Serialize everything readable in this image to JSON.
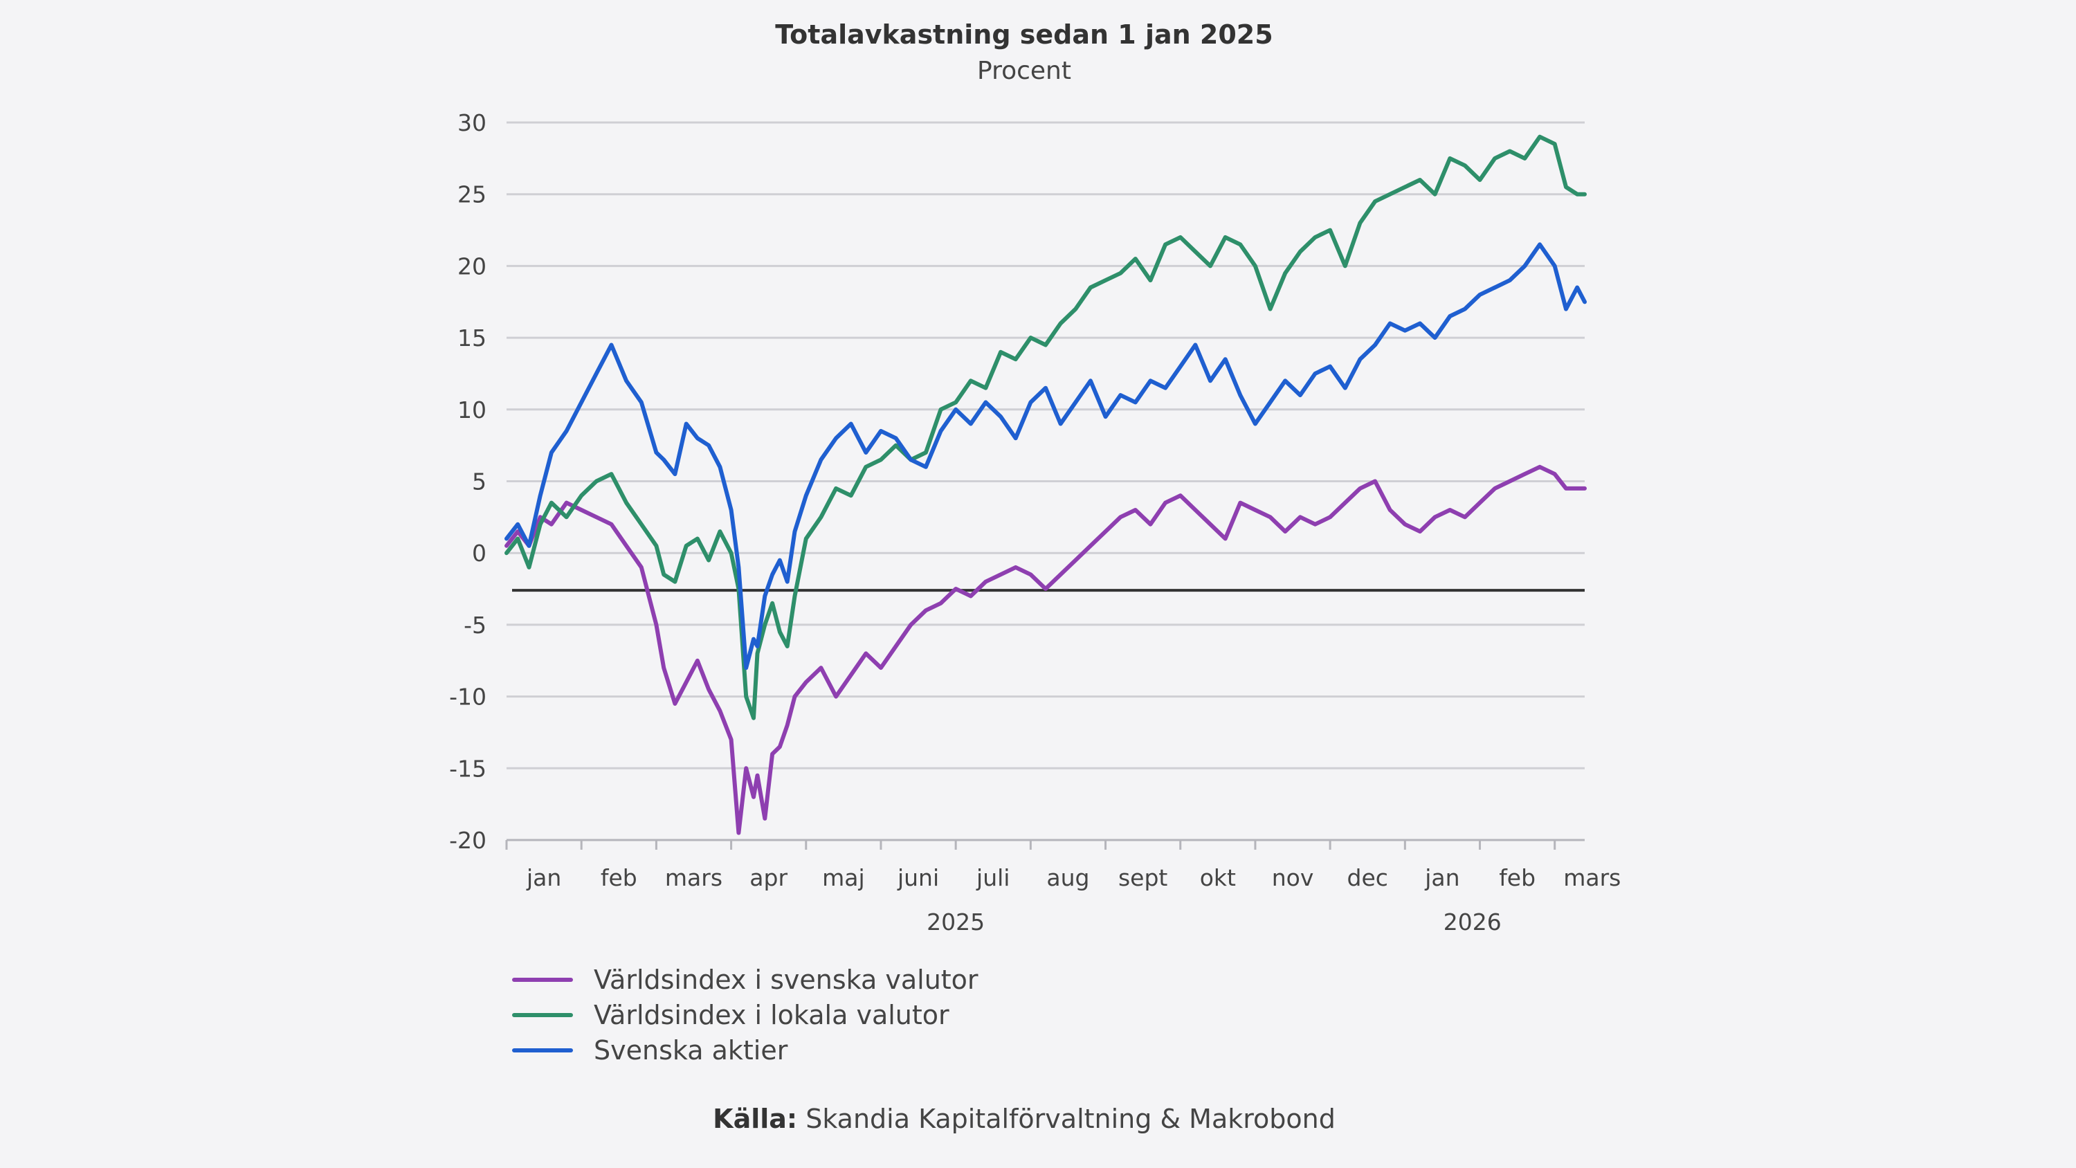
{
  "title": "Totalavkastning sedan 1 jan 2025",
  "subtitle": "Procent",
  "source": {
    "label": "Källa:",
    "text": "Skandia Kapitalförvaltning & Makrobond"
  },
  "colors": {
    "purple": "#8e3fb0",
    "green": "#2e8f6a",
    "blue": "#1f5fd0",
    "grid": "#cfcfd4",
    "refline": "#333333"
  },
  "chart_data": {
    "type": "line",
    "title": "Totalavkastning sedan 1 jan 2025",
    "subtitle": "Procent",
    "ylim": [
      -20,
      30
    ],
    "yticks": [
      "30",
      "25",
      "20",
      "15",
      "10",
      "5",
      "0",
      "-5",
      "-10",
      "-15",
      "-20"
    ],
    "xticks": [
      "jan",
      "feb",
      "mars",
      "apr",
      "maj",
      "juni",
      "juli",
      "aug",
      "sept",
      "okt",
      "nov",
      "dec",
      "jan",
      "feb",
      "mars"
    ],
    "years": [
      "2025",
      "2026"
    ],
    "reference_line": -2.6,
    "grid": true,
    "legend_position": "bottom-left",
    "x_unit": "months since 1 jan 2025",
    "series": [
      {
        "name": "Världsindex i svenska valutor",
        "color": "#8e3fb0",
        "x": [
          0,
          0.15,
          0.3,
          0.45,
          0.6,
          0.8,
          1.0,
          1.2,
          1.4,
          1.6,
          1.8,
          2.0,
          2.1,
          2.25,
          2.4,
          2.55,
          2.7,
          2.85,
          3.0,
          3.1,
          3.2,
          3.3,
          3.35,
          3.45,
          3.55,
          3.65,
          3.75,
          3.85,
          4.0,
          4.2,
          4.4,
          4.6,
          4.8,
          5.0,
          5.2,
          5.4,
          5.6,
          5.8,
          6.0,
          6.2,
          6.4,
          6.6,
          6.8,
          7.0,
          7.2,
          7.4,
          7.6,
          7.8,
          8.0,
          8.2,
          8.4,
          8.6,
          8.8,
          9.0,
          9.2,
          9.4,
          9.6,
          9.8,
          10.0,
          10.2,
          10.4,
          10.6,
          10.8,
          11.0,
          11.2,
          11.4,
          11.6,
          11.8,
          12.0,
          12.2,
          12.4,
          12.6,
          12.8,
          13.0,
          13.2,
          13.4,
          13.6,
          13.8,
          14.0,
          14.15,
          14.3,
          14.4
        ],
        "y": [
          0.5,
          1.5,
          0.5,
          2.5,
          2.0,
          3.5,
          3.0,
          2.5,
          2.0,
          0.5,
          -1.0,
          -5.0,
          -8.0,
          -10.5,
          -9.0,
          -7.5,
          -9.5,
          -11.0,
          -13.0,
          -19.5,
          -15.0,
          -17.0,
          -15.5,
          -18.5,
          -14.0,
          -13.5,
          -12.0,
          -10.0,
          -9.0,
          -8.0,
          -10.0,
          -8.5,
          -7.0,
          -8.0,
          -6.5,
          -5.0,
          -4.0,
          -3.5,
          -2.5,
          -3.0,
          -2.0,
          -1.5,
          -1.0,
          -1.5,
          -2.5,
          -1.5,
          -0.5,
          0.5,
          1.5,
          2.5,
          3.0,
          2.0,
          3.5,
          4.0,
          3.0,
          2.0,
          1.0,
          3.5,
          3.0,
          2.5,
          1.5,
          2.5,
          2.0,
          2.5,
          3.5,
          4.5,
          5.0,
          3.0,
          2.0,
          1.5,
          2.5,
          3.0,
          2.5,
          3.5,
          4.5,
          5.0,
          5.5,
          6.0,
          5.5,
          4.5,
          4.5,
          4.5
        ]
      },
      {
        "name": "Världsindex i lokala valutor",
        "color": "#2e8f6a",
        "x": [
          0,
          0.15,
          0.3,
          0.45,
          0.6,
          0.8,
          1.0,
          1.2,
          1.4,
          1.6,
          1.8,
          2.0,
          2.1,
          2.25,
          2.4,
          2.55,
          2.7,
          2.85,
          3.0,
          3.1,
          3.2,
          3.3,
          3.35,
          3.45,
          3.55,
          3.65,
          3.75,
          3.85,
          4.0,
          4.2,
          4.4,
          4.6,
          4.8,
          5.0,
          5.2,
          5.4,
          5.6,
          5.8,
          6.0,
          6.2,
          6.4,
          6.6,
          6.8,
          7.0,
          7.2,
          7.4,
          7.6,
          7.8,
          8.0,
          8.2,
          8.4,
          8.6,
          8.8,
          9.0,
          9.2,
          9.4,
          9.6,
          9.8,
          10.0,
          10.2,
          10.4,
          10.6,
          10.8,
          11.0,
          11.2,
          11.4,
          11.6,
          11.8,
          12.0,
          12.2,
          12.4,
          12.6,
          12.8,
          13.0,
          13.2,
          13.4,
          13.6,
          13.8,
          14.0,
          14.15,
          14.3,
          14.4
        ],
        "y": [
          0.0,
          1.0,
          -1.0,
          2.0,
          3.5,
          2.5,
          4.0,
          5.0,
          5.5,
          3.5,
          2.0,
          0.5,
          -1.5,
          -2.0,
          0.5,
          1.0,
          -0.5,
          1.5,
          0.0,
          -2.5,
          -10.0,
          -11.5,
          -7.0,
          -5.0,
          -3.5,
          -5.5,
          -6.5,
          -3.0,
          1.0,
          2.5,
          4.5,
          4.0,
          6.0,
          6.5,
          7.5,
          6.5,
          7.0,
          10.0,
          10.5,
          12.0,
          11.5,
          14.0,
          13.5,
          15.0,
          14.5,
          16.0,
          17.0,
          18.5,
          19.0,
          19.5,
          20.5,
          19.0,
          21.5,
          22.0,
          21.0,
          20.0,
          22.0,
          21.5,
          20.0,
          17.0,
          19.5,
          21.0,
          22.0,
          22.5,
          20.0,
          23.0,
          24.5,
          25.0,
          25.5,
          26.0,
          25.0,
          27.5,
          27.0,
          26.0,
          27.5,
          28.0,
          27.5,
          29.0,
          28.5,
          25.5,
          25.0,
          25.0
        ]
      },
      {
        "name": "Svenska aktier",
        "color": "#1f5fd0",
        "x": [
          0,
          0.15,
          0.3,
          0.45,
          0.6,
          0.8,
          1.0,
          1.2,
          1.4,
          1.6,
          1.8,
          2.0,
          2.1,
          2.25,
          2.4,
          2.55,
          2.7,
          2.85,
          3.0,
          3.1,
          3.2,
          3.3,
          3.35,
          3.45,
          3.55,
          3.65,
          3.75,
          3.85,
          4.0,
          4.2,
          4.4,
          4.6,
          4.8,
          5.0,
          5.2,
          5.4,
          5.6,
          5.8,
          6.0,
          6.2,
          6.4,
          6.6,
          6.8,
          7.0,
          7.2,
          7.4,
          7.6,
          7.8,
          8.0,
          8.2,
          8.4,
          8.6,
          8.8,
          9.0,
          9.2,
          9.4,
          9.6,
          9.8,
          10.0,
          10.2,
          10.4,
          10.6,
          10.8,
          11.0,
          11.2,
          11.4,
          11.6,
          11.8,
          12.0,
          12.2,
          12.4,
          12.6,
          12.8,
          13.0,
          13.2,
          13.4,
          13.6,
          13.8,
          14.0,
          14.15,
          14.3,
          14.4
        ],
        "y": [
          1.0,
          2.0,
          0.5,
          4.0,
          7.0,
          8.5,
          10.5,
          12.5,
          14.5,
          12.0,
          10.5,
          7.0,
          6.5,
          5.5,
          9.0,
          8.0,
          7.5,
          6.0,
          3.0,
          -1.0,
          -8.0,
          -6.0,
          -6.5,
          -3.0,
          -1.5,
          -0.5,
          -2.0,
          1.5,
          4.0,
          6.5,
          8.0,
          9.0,
          7.0,
          8.5,
          8.0,
          6.5,
          6.0,
          8.5,
          10.0,
          9.0,
          10.5,
          9.5,
          8.0,
          10.5,
          11.5,
          9.0,
          10.5,
          12.0,
          9.5,
          11.0,
          10.5,
          12.0,
          11.5,
          13.0,
          14.5,
          12.0,
          13.5,
          11.0,
          9.0,
          10.5,
          12.0,
          11.0,
          12.5,
          13.0,
          11.5,
          13.5,
          14.5,
          16.0,
          15.5,
          16.0,
          15.0,
          16.5,
          17.0,
          18.0,
          18.5,
          19.0,
          20.0,
          21.5,
          20.0,
          17.0,
          18.5,
          17.5
        ]
      }
    ]
  }
}
